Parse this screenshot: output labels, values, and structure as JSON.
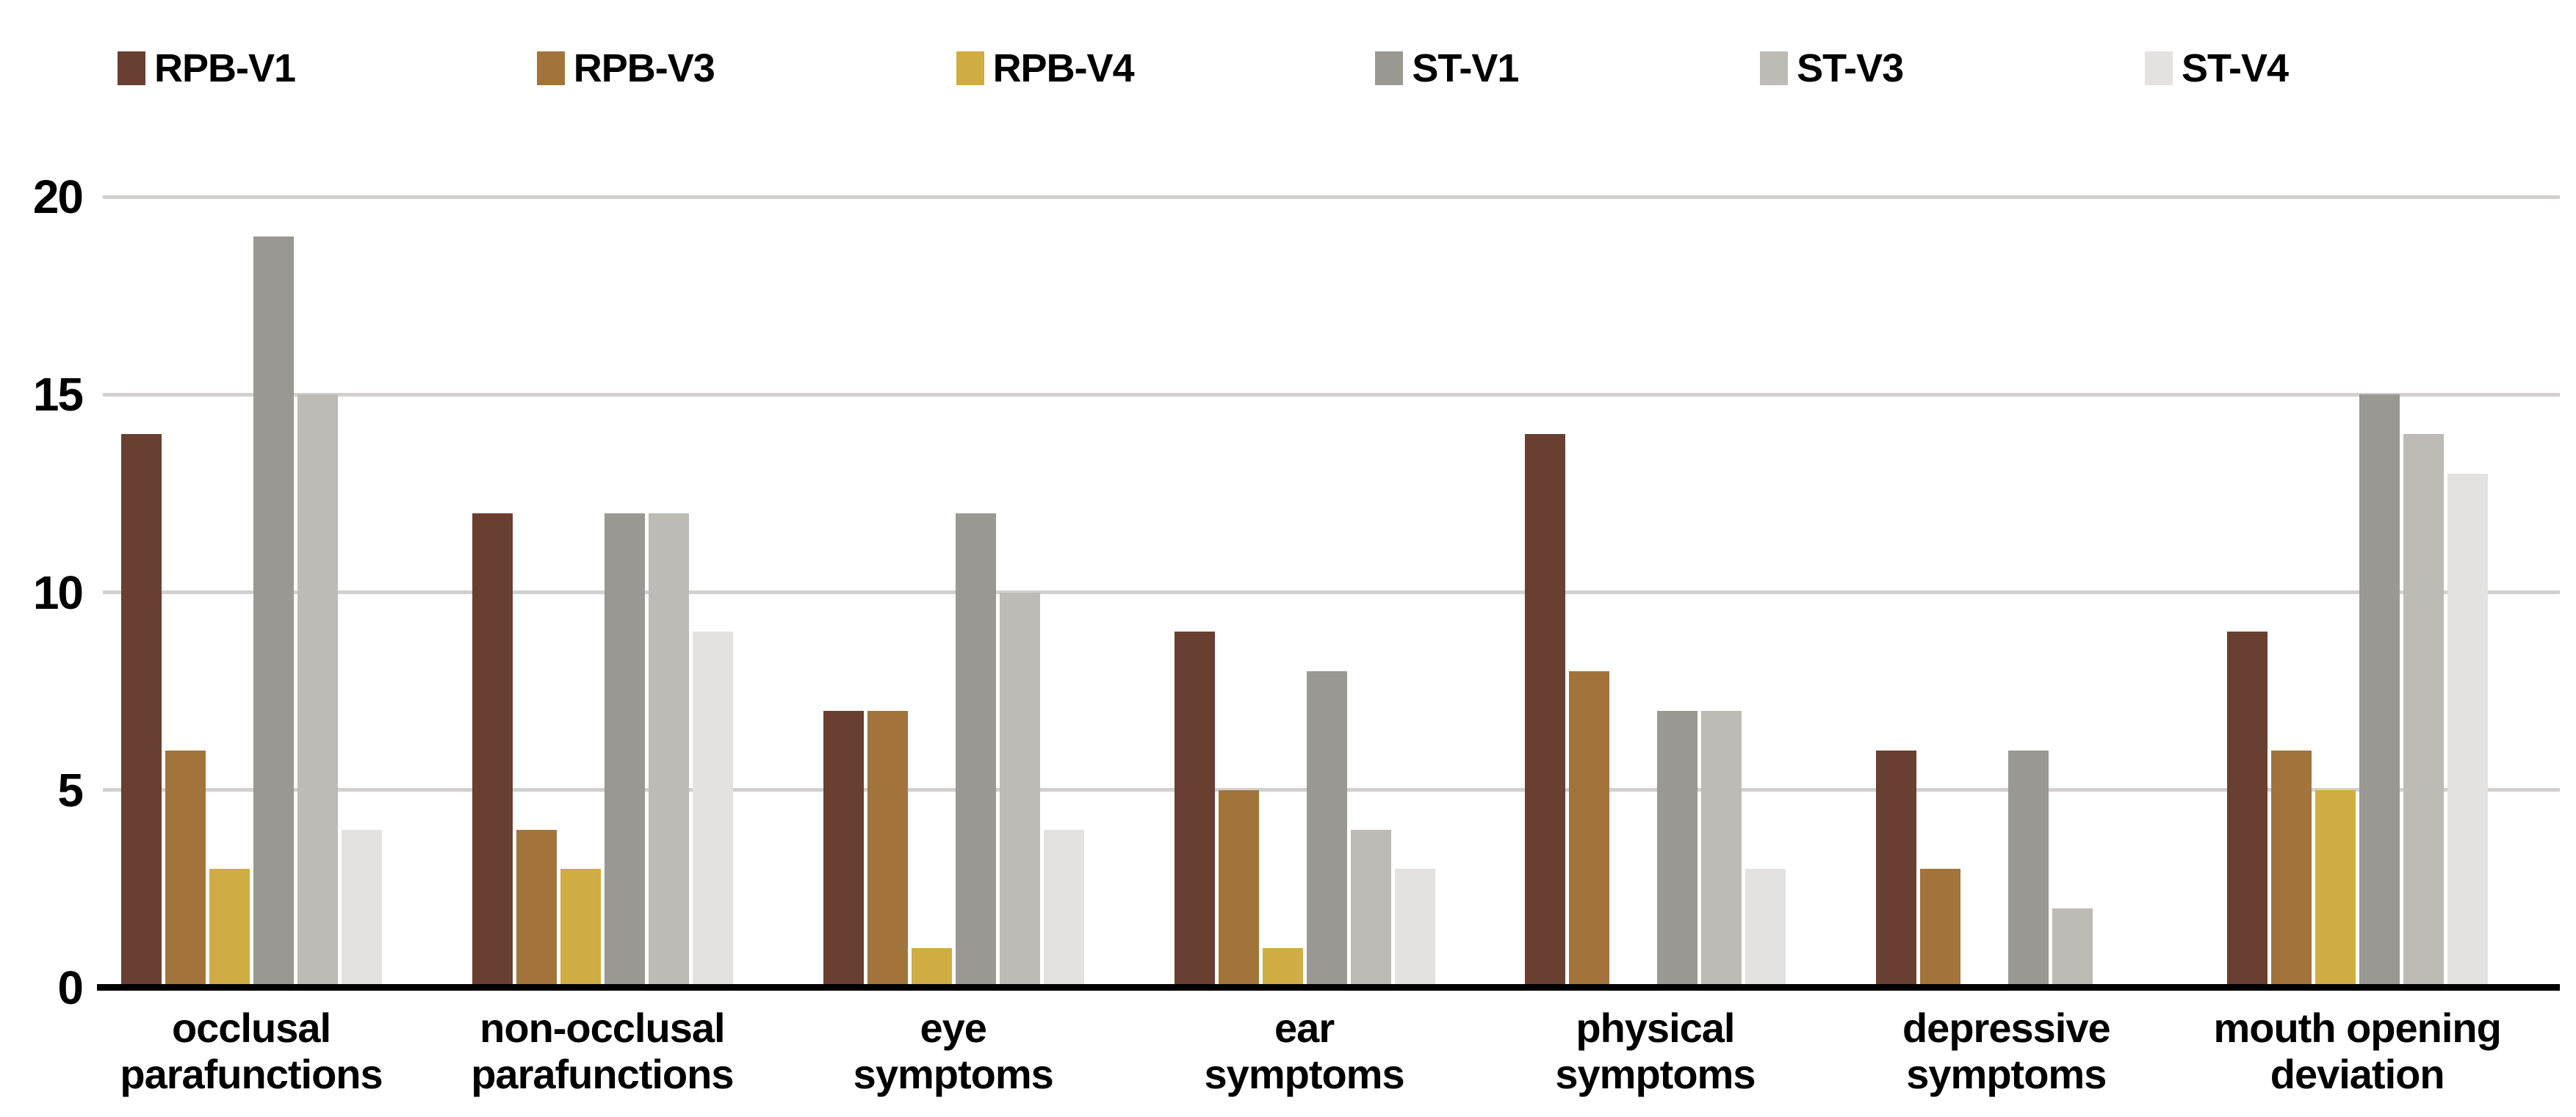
{
  "chart_data": {
    "type": "bar",
    "title": "",
    "xlabel": "",
    "ylabel": "",
    "categories": [
      "occlusal parafunctions",
      "non-occlusal parafunctions",
      "eye symptoms",
      "ear symptoms",
      "physical symptoms",
      "depressive symptoms",
      "mouth opening deviation"
    ],
    "category_lines": [
      [
        "occlusal",
        "parafunctions"
      ],
      [
        "non-occlusal",
        "parafunctions"
      ],
      [
        "eye",
        "symptoms"
      ],
      [
        "ear",
        "symptoms"
      ],
      [
        "physical",
        "symptoms"
      ],
      [
        "depressive",
        "symptoms"
      ],
      [
        "mouth opening",
        "deviation"
      ]
    ],
    "series": [
      {
        "name": "RPB-V1",
        "color": "#693f31",
        "values": [
          14,
          12,
          7,
          9,
          14,
          6,
          9
        ]
      },
      {
        "name": "RPB-V3",
        "color": "#a2743c",
        "values": [
          6,
          4,
          7,
          5,
          8,
          3,
          6
        ]
      },
      {
        "name": "RPB-V4",
        "color": "#d0ad42",
        "values": [
          3,
          3,
          1,
          1,
          0,
          0,
          5
        ]
      },
      {
        "name": "ST-V1",
        "color": "#9a9892",
        "values": [
          19,
          12,
          12,
          8,
          7,
          6,
          15
        ]
      },
      {
        "name": "ST-V3",
        "color": "#bebab6",
        "values": [
          15,
          12,
          10,
          4,
          7,
          2,
          14
        ]
      },
      {
        "name": "ST-V4",
        "color": "#e4e2e0",
        "values": [
          4,
          9,
          4,
          3,
          3,
          0,
          13
        ]
      }
    ],
    "ylim": [
      0,
      20
    ],
    "y_ticks": [
      0,
      5,
      10,
      15,
      20
    ],
    "grid": "horizontal",
    "gridline_color": "#d2d0ce",
    "axis_line_color": "#000000",
    "legend_position": "top",
    "background_color": "#ffffff"
  }
}
